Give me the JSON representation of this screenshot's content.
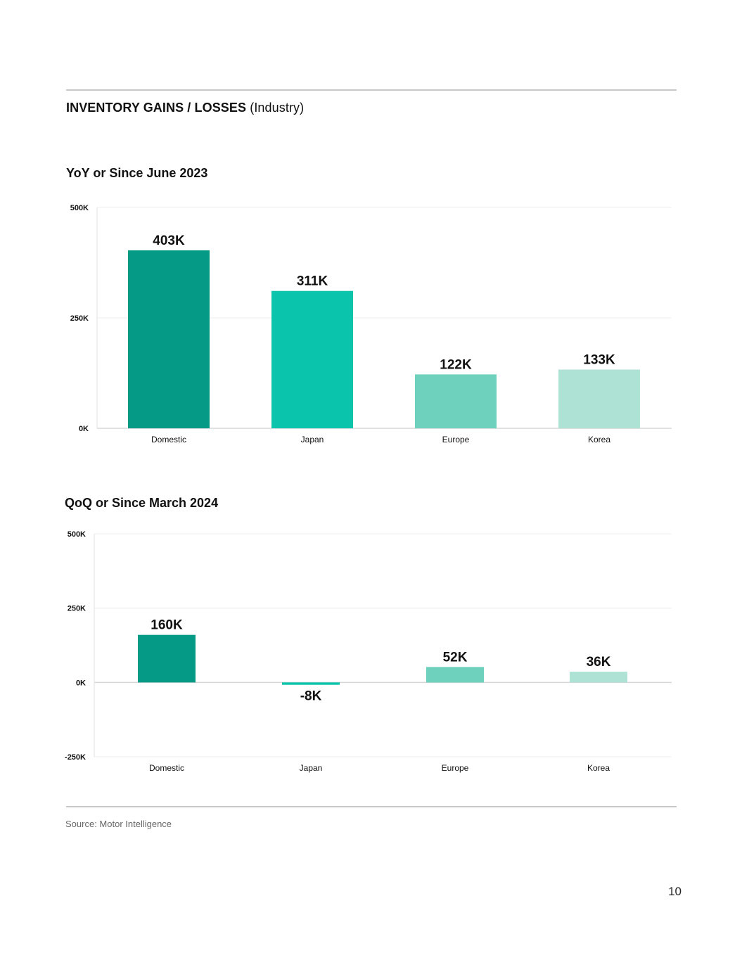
{
  "header": {
    "title_bold": "INVENTORY GAINS / LOSSES",
    "title_rest": "(Industry)"
  },
  "footer": {
    "source": "Source: Motor Intelligence",
    "page_number": "10"
  },
  "colors": {
    "Domestic": "#059a85",
    "Japan": "#0ac4ac",
    "Europe": "#6ed1bd",
    "Korea": "#aee2d4",
    "grid": "#ececec",
    "rule": "#c8c8c8"
  },
  "chart_data": [
    {
      "type": "bar",
      "title": "YoY or Since June 2023",
      "categories": [
        "Domestic",
        "Japan",
        "Europe",
        "Korea"
      ],
      "values": [
        403,
        311,
        122,
        133
      ],
      "data_labels": [
        "403K",
        "311K",
        "122K",
        "133K"
      ],
      "ylim": [
        0,
        500
      ],
      "yticks": [
        0,
        250,
        500
      ],
      "ytick_labels": [
        "0K",
        "250K",
        "500K"
      ],
      "grid": true,
      "legend": "none"
    },
    {
      "type": "bar",
      "title": "QoQ or Since March 2024",
      "categories": [
        "Domestic",
        "Japan",
        "Europe",
        "Korea"
      ],
      "values": [
        160,
        -8,
        52,
        36
      ],
      "data_labels": [
        "160K",
        "-8K",
        "52K",
        "36K"
      ],
      "ylim": [
        -250,
        500
      ],
      "yticks": [
        -250,
        0,
        250,
        500
      ],
      "ytick_labels": [
        "-250K",
        "0K",
        "250K",
        "500K"
      ],
      "grid": true,
      "legend": "none"
    }
  ]
}
